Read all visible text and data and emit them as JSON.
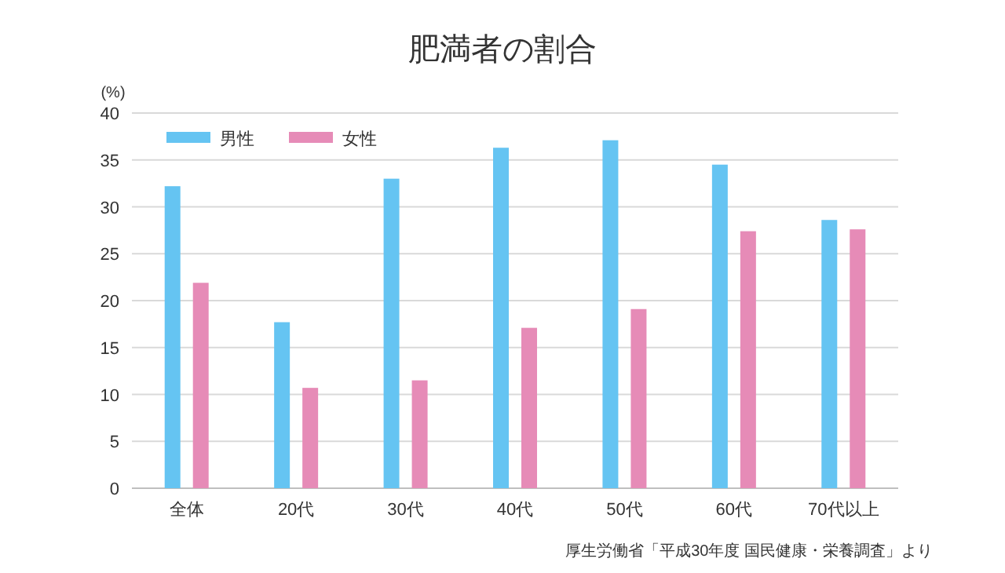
{
  "chart_data": {
    "type": "bar",
    "title": "肥満者の割合",
    "ylabel": "(%)",
    "categories": [
      "全体",
      "20代",
      "30代",
      "40代",
      "50代",
      "60代",
      "70代以上"
    ],
    "series": [
      {
        "name": "男性",
        "color": "#65c4f2",
        "values": [
          32.2,
          17.7,
          33.0,
          36.3,
          37.1,
          34.5,
          28.6
        ]
      },
      {
        "name": "女性",
        "color": "#e68bb7",
        "values": [
          21.9,
          10.7,
          11.5,
          17.1,
          19.1,
          27.4,
          27.6
        ]
      }
    ],
    "ylim": [
      0,
      40
    ],
    "yticks": [
      0,
      5,
      10,
      15,
      20,
      25,
      30,
      35,
      40
    ],
    "grid": "y",
    "legend": "top left",
    "annotations": [
      "厚生労働省「平成30年度 国民健康・栄養調査」より"
    ]
  }
}
